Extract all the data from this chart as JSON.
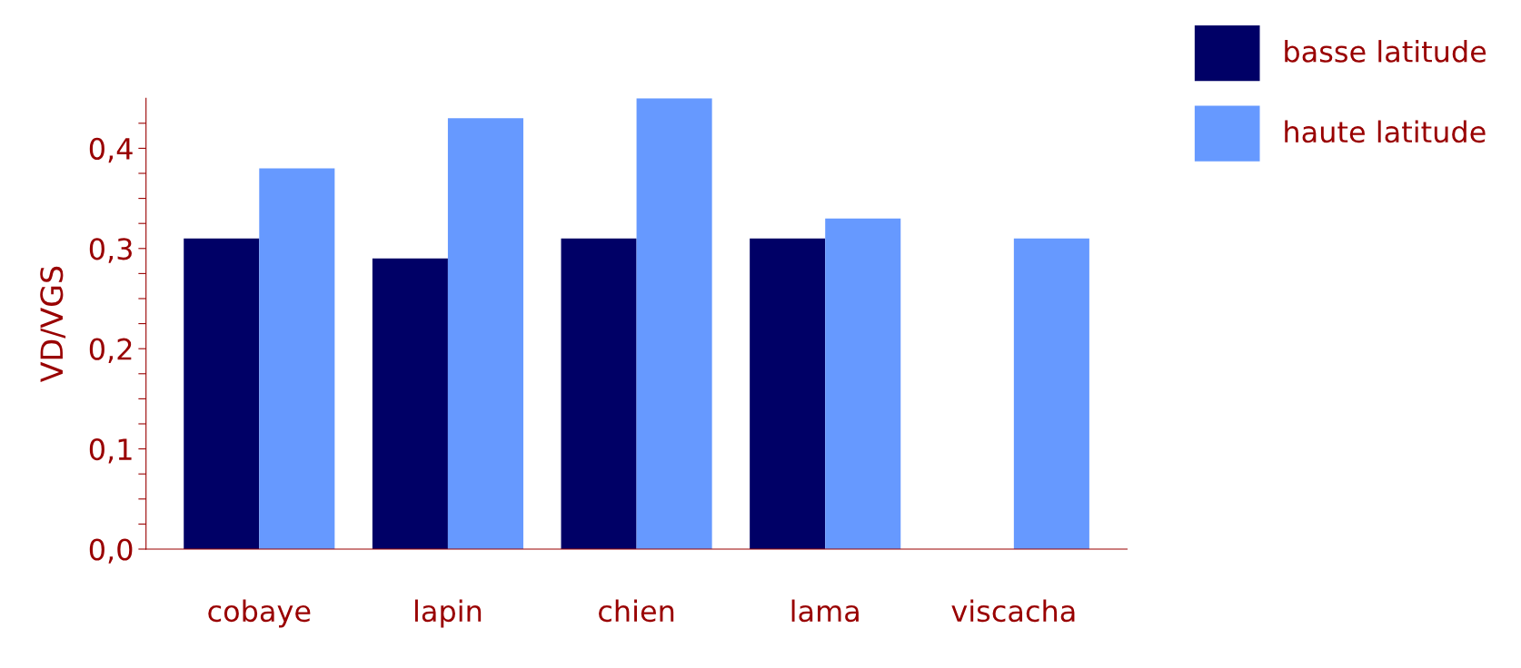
{
  "chart_data": {
    "type": "bar",
    "ylabel": "VD/VGS",
    "categories": [
      "cobaye",
      "lapin",
      "chien",
      "lama",
      "viscacha"
    ],
    "series": [
      {
        "name": "basse latitude",
        "color": "#000066",
        "values": [
          0.31,
          0.29,
          0.31,
          0.31,
          null
        ]
      },
      {
        "name": "haute latitude",
        "color": "#6699ff",
        "values": [
          0.38,
          0.43,
          0.45,
          0.33,
          0.31
        ]
      }
    ],
    "ylim": [
      0,
      0.45
    ],
    "yticks": [
      {
        "value": 0,
        "label": "0,0"
      },
      {
        "value": 0.025,
        "label": null
      },
      {
        "value": 0.05,
        "label": null
      },
      {
        "value": 0.075,
        "label": null
      },
      {
        "value": 0.1,
        "label": "0,1"
      },
      {
        "value": 0.125,
        "label": null
      },
      {
        "value": 0.15,
        "label": null
      },
      {
        "value": 0.175,
        "label": null
      },
      {
        "value": 0.2,
        "label": "0,2"
      },
      {
        "value": 0.225,
        "label": null
      },
      {
        "value": 0.25,
        "label": null
      },
      {
        "value": 0.275,
        "label": null
      },
      {
        "value": 0.3,
        "label": "0,3"
      },
      {
        "value": 0.325,
        "label": null
      },
      {
        "value": 0.35,
        "label": null
      },
      {
        "value": 0.375,
        "label": null
      },
      {
        "value": 0.4,
        "label": "0,4"
      },
      {
        "value": 0.425,
        "label": null
      }
    ],
    "grid": false,
    "legend": "top right"
  }
}
